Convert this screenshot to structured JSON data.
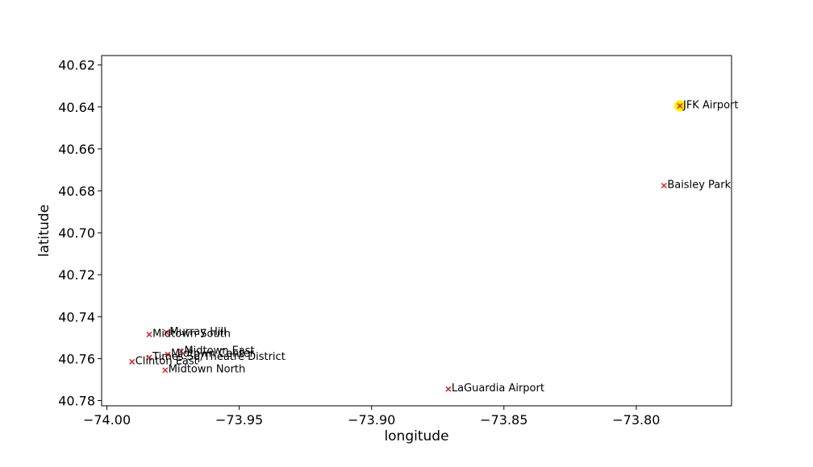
{
  "chart_data": {
    "type": "scatter",
    "xlabel": "longitude",
    "ylabel": "latitude",
    "xlim": [
      -74.002,
      -73.764
    ],
    "ylim": [
      40.6155,
      40.7825
    ],
    "y_inverted": true,
    "grid": false,
    "x_ticks": [
      -74.0,
      -73.95,
      -73.9,
      -73.85,
      -73.8
    ],
    "x_tick_labels": [
      "−74.00",
      "−73.95",
      "−73.90",
      "−73.85",
      "−73.80"
    ],
    "y_ticks": [
      40.62,
      40.64,
      40.66,
      40.68,
      40.7,
      40.72,
      40.74,
      40.76,
      40.78
    ],
    "y_tick_labels": [
      "40.62",
      "40.64",
      "40.66",
      "40.68",
      "40.70",
      "40.72",
      "40.74",
      "40.76",
      "40.78"
    ],
    "marker_color": "#d62728",
    "highlight_color": "#ffee00",
    "points": [
      {
        "label": "JFK Airport",
        "x": -73.7835,
        "y": 40.6395,
        "highlight": true
      },
      {
        "label": "Baisley Park",
        "x": -73.7895,
        "y": 40.6775
      },
      {
        "label": "LaGuardia Airport",
        "x": -73.871,
        "y": 40.7745
      },
      {
        "label": "Murray Hill",
        "x": -73.9775,
        "y": 40.7475
      },
      {
        "label": "Midtown South",
        "x": -73.984,
        "y": 40.7485
      },
      {
        "label": "Midtown East",
        "x": -73.972,
        "y": 40.7565
      },
      {
        "label": "Midtown Center",
        "x": -73.977,
        "y": 40.758
      },
      {
        "label": "Times Sq/Theatre District",
        "x": -73.984,
        "y": 40.7595
      },
      {
        "label": "Clinton East",
        "x": -73.9905,
        "y": 40.7615
      },
      {
        "label": "Midtown North",
        "x": -73.978,
        "y": 40.7655
      }
    ]
  }
}
